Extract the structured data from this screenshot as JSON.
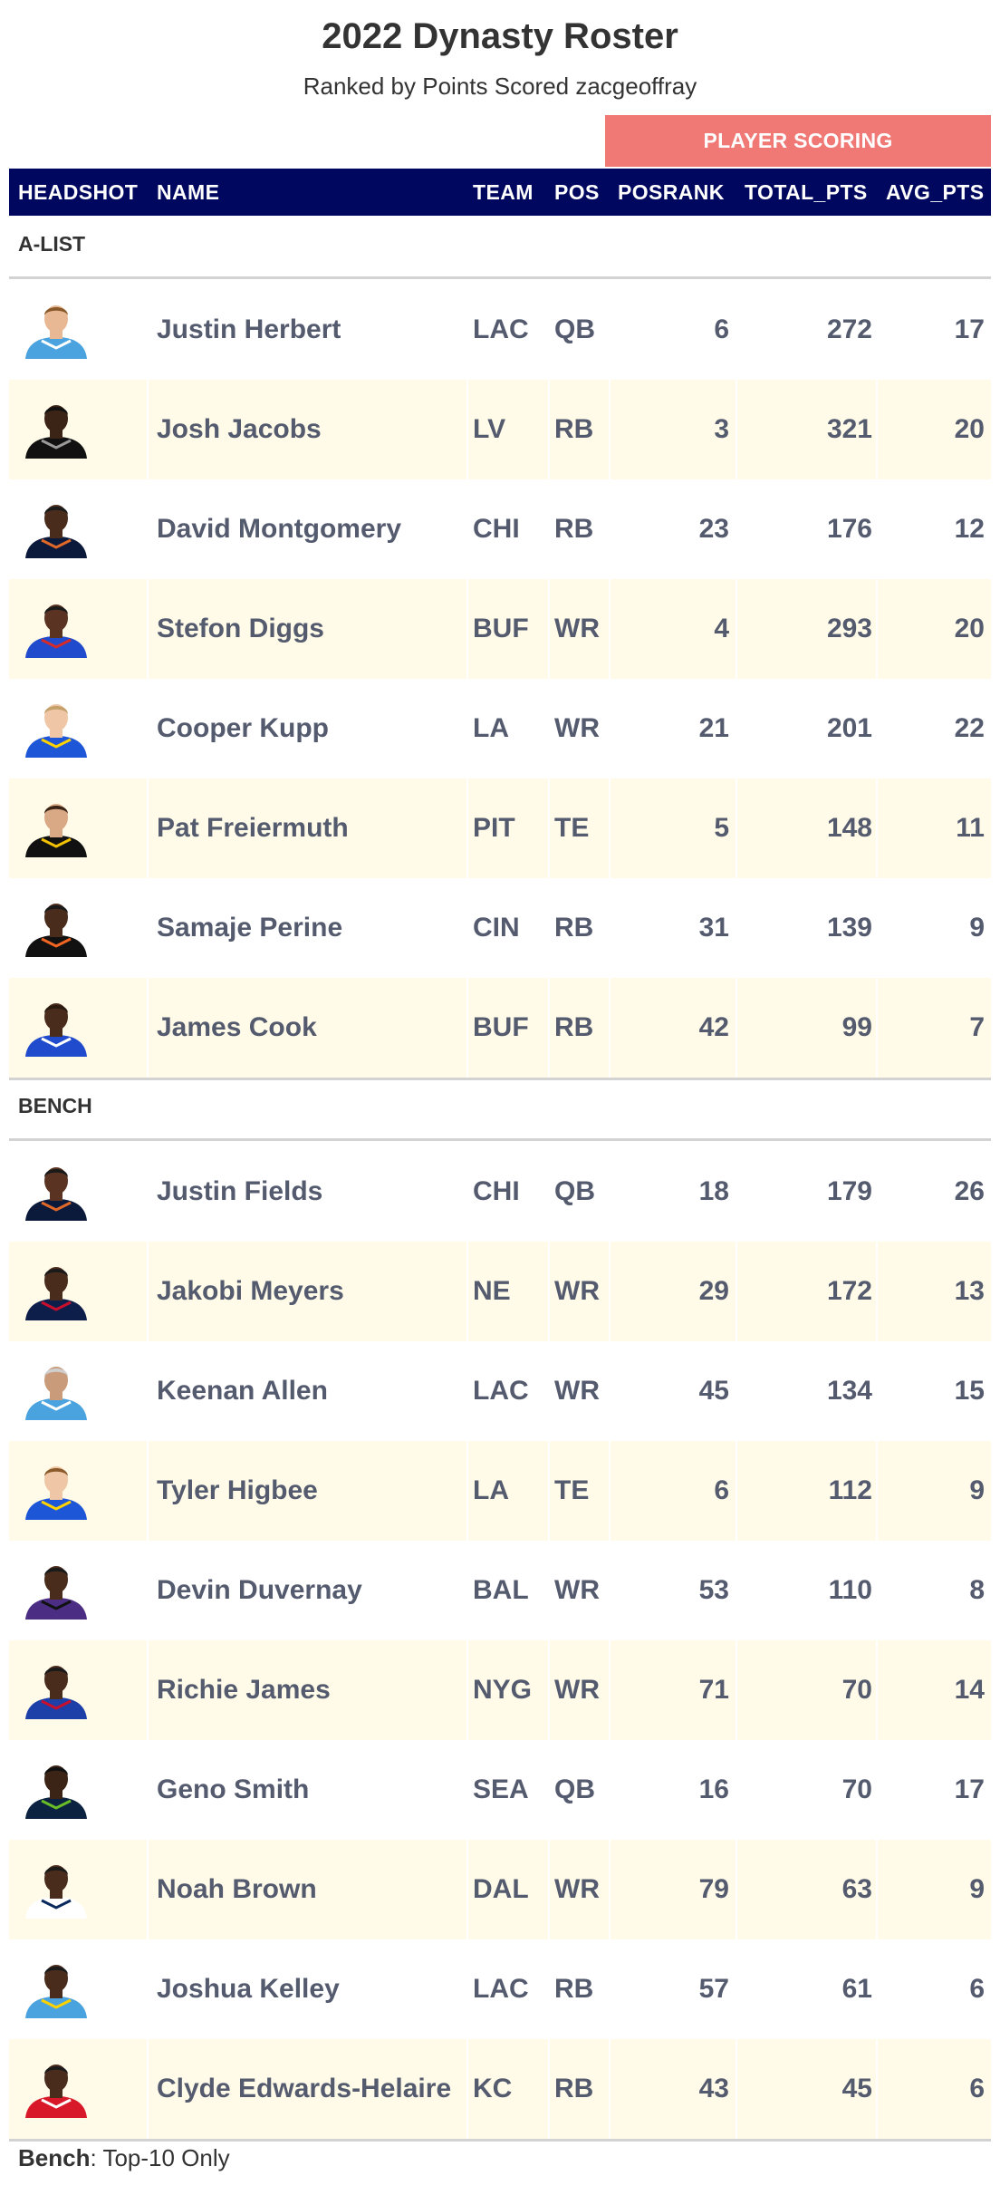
{
  "title": "2022 Dynasty Roster",
  "subtitle": "Ranked by Points Scored zacgeoffray",
  "spanner_label": "PLAYER SCORING",
  "columns": {
    "headshot": "HEADSHOT",
    "name": "NAME",
    "team": "TEAM",
    "pos": "POS",
    "posrank": "POSRANK",
    "total_pts": "TOTAL_PTS",
    "avg_pts": "AVG_PTS"
  },
  "colors": {
    "header_bg": "#00075f",
    "spanner_bg": "#f07875",
    "alt_row_bg": "#fffbe8",
    "cell_text": "#555b6e"
  },
  "groups": [
    {
      "label": "A-LIST",
      "rows": [
        {
          "name": "Justin Herbert",
          "team": "LAC",
          "pos": "QB",
          "posrank": "6",
          "total_pts": "272",
          "avg_pts": "17",
          "headshot": {
            "skin": "#e8b894",
            "hair": "#8a5a2b",
            "jersey": "#4aa3df",
            "trim": "#ffffff"
          }
        },
        {
          "name": "Josh Jacobs",
          "team": "LV",
          "pos": "RB",
          "posrank": "3",
          "total_pts": "321",
          "avg_pts": "20",
          "headshot": {
            "skin": "#3b2416",
            "hair": "#111111",
            "jersey": "#111111",
            "trim": "#9a9a9a"
          }
        },
        {
          "name": "David Montgomery",
          "team": "CHI",
          "pos": "RB",
          "posrank": "23",
          "total_pts": "176",
          "avg_pts": "12",
          "headshot": {
            "skin": "#4a2c1d",
            "hair": "#1a1a1a",
            "jersey": "#0b1a3a",
            "trim": "#e0692a"
          }
        },
        {
          "name": "Stefon Diggs",
          "team": "BUF",
          "pos": "WR",
          "posrank": "4",
          "total_pts": "293",
          "avg_pts": "20",
          "headshot": {
            "skin": "#5a3322",
            "hair": "#1a1a1a",
            "jersey": "#1f4bcc",
            "trim": "#d52b2b"
          }
        },
        {
          "name": "Cooper Kupp",
          "team": "LA",
          "pos": "WR",
          "posrank": "21",
          "total_pts": "201",
          "avg_pts": "22",
          "headshot": {
            "skin": "#efc7a6",
            "hair": "#c4a06a",
            "jersey": "#1d56d6",
            "trim": "#ffd200"
          }
        },
        {
          "name": "Pat Freiermuth",
          "team": "PIT",
          "pos": "TE",
          "posrank": "5",
          "total_pts": "148",
          "avg_pts": "11",
          "headshot": {
            "skin": "#d9a884",
            "hair": "#3a2416",
            "jersey": "#111111",
            "trim": "#f2c200"
          }
        },
        {
          "name": "Samaje Perine",
          "team": "CIN",
          "pos": "RB",
          "posrank": "31",
          "total_pts": "139",
          "avg_pts": "9",
          "headshot": {
            "skin": "#4a2c1d",
            "hair": "#1a1a1a",
            "jersey": "#111111",
            "trim": "#f26522"
          }
        },
        {
          "name": "James Cook",
          "team": "BUF",
          "pos": "RB",
          "posrank": "42",
          "total_pts": "99",
          "avg_pts": "7",
          "headshot": {
            "skin": "#4a2c1d",
            "hair": "#2a1a10",
            "jersey": "#1f4bcc",
            "trim": "#ffffff"
          }
        }
      ]
    },
    {
      "label": "BENCH",
      "rows": [
        {
          "name": "Justin Fields",
          "team": "CHI",
          "pos": "QB",
          "posrank": "18",
          "total_pts": "179",
          "avg_pts": "26",
          "headshot": {
            "skin": "#5a3322",
            "hair": "#1a1a1a",
            "jersey": "#0b1a3a",
            "trim": "#e0692a"
          }
        },
        {
          "name": "Jakobi Meyers",
          "team": "NE",
          "pos": "WR",
          "posrank": "29",
          "total_pts": "172",
          "avg_pts": "13",
          "headshot": {
            "skin": "#4a2c1d",
            "hair": "#1a1a1a",
            "jersey": "#0e1e4a",
            "trim": "#c8102e"
          }
        },
        {
          "name": "Keenan Allen",
          "team": "LAC",
          "pos": "WR",
          "posrank": "45",
          "total_pts": "134",
          "avg_pts": "15",
          "headshot": {
            "skin": "#c99b7a",
            "hair": "#cfcfcf",
            "jersey": "#4aa3df",
            "trim": "#ffffff"
          }
        },
        {
          "name": "Tyler Higbee",
          "team": "LA",
          "pos": "TE",
          "posrank": "6",
          "total_pts": "112",
          "avg_pts": "9",
          "headshot": {
            "skin": "#efc7a6",
            "hair": "#8a5a2b",
            "jersey": "#1d56d6",
            "trim": "#ffd200"
          }
        },
        {
          "name": "Devin Duvernay",
          "team": "BAL",
          "pos": "WR",
          "posrank": "53",
          "total_pts": "110",
          "avg_pts": "8",
          "headshot": {
            "skin": "#4a2c1d",
            "hair": "#1a1a1a",
            "jersey": "#4b2e83",
            "trim": "#111111"
          }
        },
        {
          "name": "Richie James",
          "team": "NYG",
          "pos": "WR",
          "posrank": "71",
          "total_pts": "70",
          "avg_pts": "14",
          "headshot": {
            "skin": "#4a2c1d",
            "hair": "#1a1a1a",
            "jersey": "#1d3fa8",
            "trim": "#c8102e"
          }
        },
        {
          "name": "Geno Smith",
          "team": "SEA",
          "pos": "QB",
          "posrank": "16",
          "total_pts": "70",
          "avg_pts": "17",
          "headshot": {
            "skin": "#3b2416",
            "hair": "#111111",
            "jersey": "#0b2240",
            "trim": "#69be28"
          }
        },
        {
          "name": "Noah Brown",
          "team": "DAL",
          "pos": "WR",
          "posrank": "79",
          "total_pts": "63",
          "avg_pts": "9",
          "headshot": {
            "skin": "#4a2c1d",
            "hair": "#1a1a1a",
            "jersey": "#ffffff",
            "trim": "#0a2a5e"
          }
        },
        {
          "name": "Joshua Kelley",
          "team": "LAC",
          "pos": "RB",
          "posrank": "57",
          "total_pts": "61",
          "avg_pts": "6",
          "headshot": {
            "skin": "#4a2c1d",
            "hair": "#1a1a1a",
            "jersey": "#4aa3df",
            "trim": "#ffd200"
          }
        },
        {
          "name": "Clyde Edwards-Helaire",
          "team": "KC",
          "pos": "RB",
          "posrank": "43",
          "total_pts": "45",
          "avg_pts": "6",
          "headshot": {
            "skin": "#4a2c1d",
            "hair": "#1a1a1a",
            "jersey": "#d7192a",
            "trim": "#ffffff"
          }
        }
      ]
    }
  ],
  "footnote": {
    "bold": "Bench",
    "rest": ": Top-10 Only"
  }
}
